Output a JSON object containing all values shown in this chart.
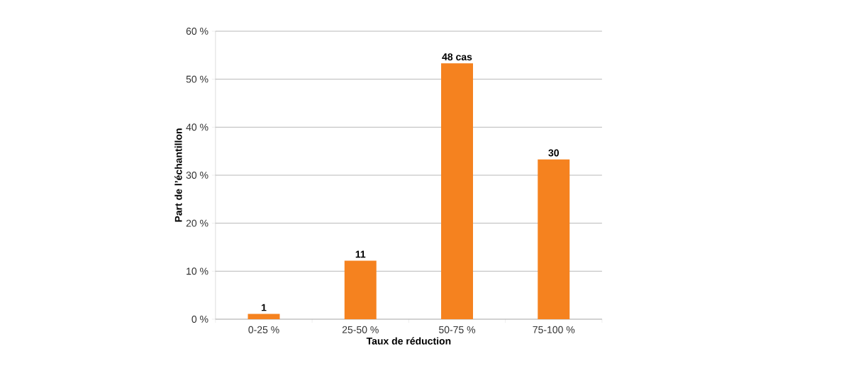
{
  "chart_data": {
    "type": "bar",
    "xlabel": "Taux de réduction",
    "ylabel": "Part de l’échantillon",
    "categories": [
      "0-25 %",
      "25-50 %",
      "50-75 %",
      "75-100 %"
    ],
    "values": [
      1.1,
      12.2,
      53.3,
      33.3
    ],
    "annotations": [
      {
        "text": "1",
        "x": "0-25 %",
        "y": 1.1
      },
      {
        "text": "11",
        "x": "25-50 %",
        "y": 12.2
      },
      {
        "text": "48 cas",
        "x": "50-75 %",
        "y": 53.3
      },
      {
        "text": "30",
        "x": "75-100 %",
        "y": 33.3
      }
    ],
    "color": "#f5821f",
    "ylim": [
      0,
      60
    ],
    "yticks": [
      {
        "value": 0,
        "label": "0 %"
      },
      {
        "value": 10,
        "label": "10 %"
      },
      {
        "value": 20,
        "label": "20 %"
      },
      {
        "value": 30,
        "label": "30 %"
      },
      {
        "value": 40,
        "label": "40 %"
      },
      {
        "value": 50,
        "label": "50 %"
      },
      {
        "value": 60,
        "label": "60 %"
      }
    ],
    "grid": "y"
  }
}
